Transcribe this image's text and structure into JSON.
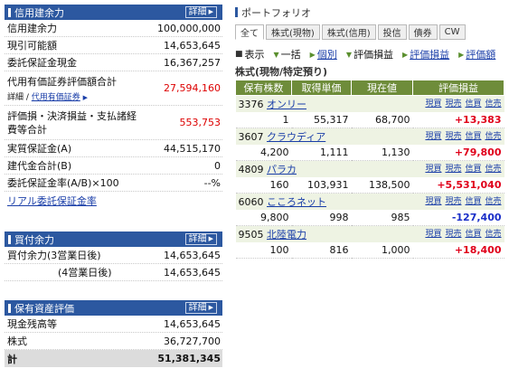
{
  "credit": {
    "title": "信用建余力",
    "detail": "詳細",
    "rows": [
      {
        "label": "信用建余力",
        "value": "100,000,000"
      },
      {
        "label": "現引可能額",
        "value": "14,653,645"
      },
      {
        "label": "委託保証金現金",
        "value": "16,367,257"
      },
      {
        "label": "代用有価証券評価額合計",
        "value": "27,594,160",
        "sub_detail": "詳細",
        "sub_link": "代用有価証券"
      },
      {
        "label": "評価損・決済損益・支払諸経費等合計",
        "value": "553,753"
      },
      {
        "label": "実質保証金(A)",
        "value": "44,515,170"
      },
      {
        "label": "建代金合計(B)",
        "value": "0"
      },
      {
        "label": "委託保証金率(A/B)×100",
        "value": "--%"
      }
    ],
    "realtime_link": "リアル委託保証金率"
  },
  "buying": {
    "title": "買付余力",
    "detail": "詳細",
    "rows": [
      {
        "label": "買付余力(3営業日後)",
        "value": "14,653,645"
      },
      {
        "label": "(4営業日後)",
        "value": "14,653,645"
      }
    ]
  },
  "assets": {
    "title": "保有資産評価",
    "detail": "詳細",
    "rows": [
      {
        "label": "現金残高等",
        "value": "14,653,645"
      },
      {
        "label": "株式",
        "value": "36,727,700"
      },
      {
        "label": "計",
        "value": "51,381,345"
      }
    ]
  },
  "portfolio": {
    "title": "ポートフォリオ",
    "tabs": [
      "全て",
      "株式(現物)",
      "株式(信用)",
      "投信",
      "債券",
      "CW"
    ],
    "active_tab": "全て",
    "toolbar": {
      "display": "表示",
      "collapse": "一括",
      "individual": "個別",
      "pl": "評価損益",
      "pl_link": "評価損益",
      "amount_link": "評価額"
    },
    "section_title": "株式(現物/特定預り)",
    "headers": [
      "保有株数",
      "取得単価",
      "現在値",
      "評価損益"
    ],
    "actions": [
      "現買",
      "現売",
      "信買",
      "信売"
    ],
    "holdings": [
      {
        "code": "3376",
        "name": "オンリー",
        "shares": "1",
        "cost": "55,317",
        "price": "68,700",
        "pl": "+13,383"
      },
      {
        "code": "3607",
        "name": "クラウディア",
        "shares": "4,200",
        "cost": "1,111",
        "price": "1,130",
        "pl": "+79,800"
      },
      {
        "code": "4809",
        "name": "パラカ",
        "shares": "160",
        "cost": "103,931",
        "price": "138,500",
        "pl": "+5,531,040"
      },
      {
        "code": "6060",
        "name": "こころネット",
        "shares": "9,800",
        "cost": "998",
        "price": "985",
        "pl": "-127,400"
      },
      {
        "code": "9505",
        "name": "北陸電力",
        "shares": "100",
        "cost": "816",
        "price": "1,000",
        "pl": "+18,400"
      }
    ]
  },
  "colors": {
    "panel_header": "#2c58a0",
    "table_header": "#6e8c3a",
    "gain": "#e0001a",
    "loss": "#1a2ec8"
  }
}
